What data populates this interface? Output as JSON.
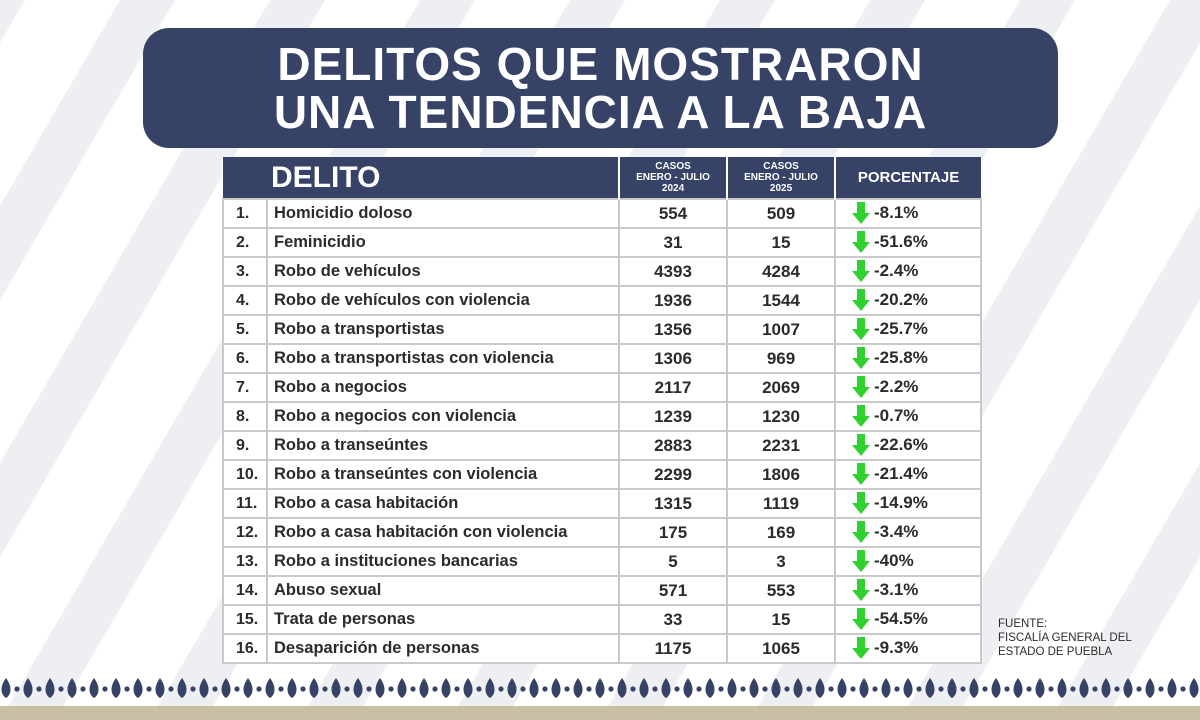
{
  "title": {
    "line1": "DELITOS QUE MOSTRARON",
    "line2": "UNA TENDENCIA A LA BAJA"
  },
  "table": {
    "headers": {
      "delito": "DELITO",
      "cases_2024": [
        "CASOS",
        "ENERO - JULIO",
        "2024"
      ],
      "cases_2025": [
        "CASOS",
        "ENERO - JULIO",
        "2025"
      ],
      "porcentaje": "PORCENTAJE"
    },
    "rows": [
      {
        "num": "1.",
        "name": "Homicidio doloso",
        "y2024": "554",
        "y2025": "509",
        "pct": "-8.1%"
      },
      {
        "num": "2.",
        "name": "Feminicidio",
        "y2024": "31",
        "y2025": "15",
        "pct": "-51.6%"
      },
      {
        "num": "3.",
        "name": "Robo de vehículos",
        "y2024": "4393",
        "y2025": "4284",
        "pct": "-2.4%"
      },
      {
        "num": "4.",
        "name": "Robo de vehículos con violencia",
        "y2024": "1936",
        "y2025": "1544",
        "pct": "-20.2%"
      },
      {
        "num": "5.",
        "name": "Robo a transportistas",
        "y2024": "1356",
        "y2025": "1007",
        "pct": "-25.7%"
      },
      {
        "num": "6.",
        "name": "Robo a transportistas con violencia",
        "y2024": "1306",
        "y2025": "969",
        "pct": "-25.8%"
      },
      {
        "num": "7.",
        "name": "Robo a negocios",
        "y2024": "2117",
        "y2025": "2069",
        "pct": "-2.2%"
      },
      {
        "num": "8.",
        "name": "Robo a negocios con violencia",
        "y2024": "1239",
        "y2025": "1230",
        "pct": "-0.7%"
      },
      {
        "num": "9.",
        "name": "Robo a transeúntes",
        "y2024": "2883",
        "y2025": "2231",
        "pct": "-22.6%"
      },
      {
        "num": "10.",
        "name": "Robo a transeúntes con violencia",
        "y2024": "2299",
        "y2025": "1806",
        "pct": "-21.4%"
      },
      {
        "num": "11.",
        "name": "Robo a casa habitación",
        "y2024": "1315",
        "y2025": "1119",
        "pct": "-14.9%"
      },
      {
        "num": "12.",
        "name": "Robo a casa habitación con violencia",
        "y2024": "175",
        "y2025": "169",
        "pct": "-3.4%"
      },
      {
        "num": "13.",
        "name": "Robo a instituciones bancarias",
        "y2024": "5",
        "y2025": "3",
        "pct": "-40%"
      },
      {
        "num": "14.",
        "name": "Abuso sexual",
        "y2024": "571",
        "y2025": "553",
        "pct": "-3.1%"
      },
      {
        "num": "15.",
        "name": "Trata de personas",
        "y2024": "33",
        "y2025": "15",
        "pct": "-54.5%"
      },
      {
        "num": "16.",
        "name": "Desaparición de personas",
        "y2024": "1175",
        "y2025": "1065",
        "pct": "-9.3%"
      }
    ]
  },
  "source": {
    "label": "FUENTE:",
    "line1": "FISCALÍA GENERAL DEL",
    "line2": "ESTADO DE PUEBLA"
  },
  "icons": {
    "trend": "arrow-down-icon"
  },
  "colors": {
    "banner": "#364266",
    "arrow": "#2fd12f",
    "stripes": "#eeeff2",
    "pattern": "#364266",
    "bottom_band": "#c8c0a5"
  }
}
